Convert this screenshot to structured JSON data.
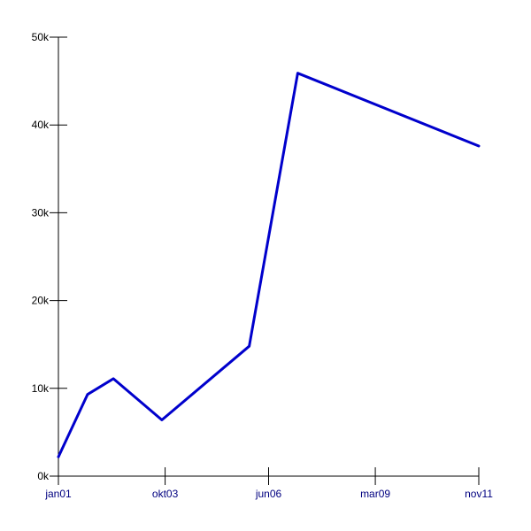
{
  "chart_data": {
    "type": "line",
    "title": "",
    "xlabel": "",
    "ylabel": "",
    "x_ticks": [
      "jan01",
      "okt03",
      "jun06",
      "mar09",
      "nov11"
    ],
    "x_tick_positions": [
      "2001-01",
      "2003-10",
      "2006-06",
      "2009-03",
      "2011-11"
    ],
    "y_ticks": [
      "0k",
      "10k",
      "20k",
      "30k",
      "40k",
      "50k"
    ],
    "ylim": [
      0,
      50000
    ],
    "grid": false,
    "series": [
      {
        "color": "#0000cc",
        "points": [
          {
            "x": "2001-01",
            "y": 2200
          },
          {
            "x": "2001-10",
            "y": 9300
          },
          {
            "x": "2002-06",
            "y": 11100
          },
          {
            "x": "2003-09",
            "y": 6400
          },
          {
            "x": "2005-12",
            "y": 14800
          },
          {
            "x": "2007-03",
            "y": 45900
          },
          {
            "x": "2011-11",
            "y": 37600
          }
        ]
      }
    ]
  }
}
